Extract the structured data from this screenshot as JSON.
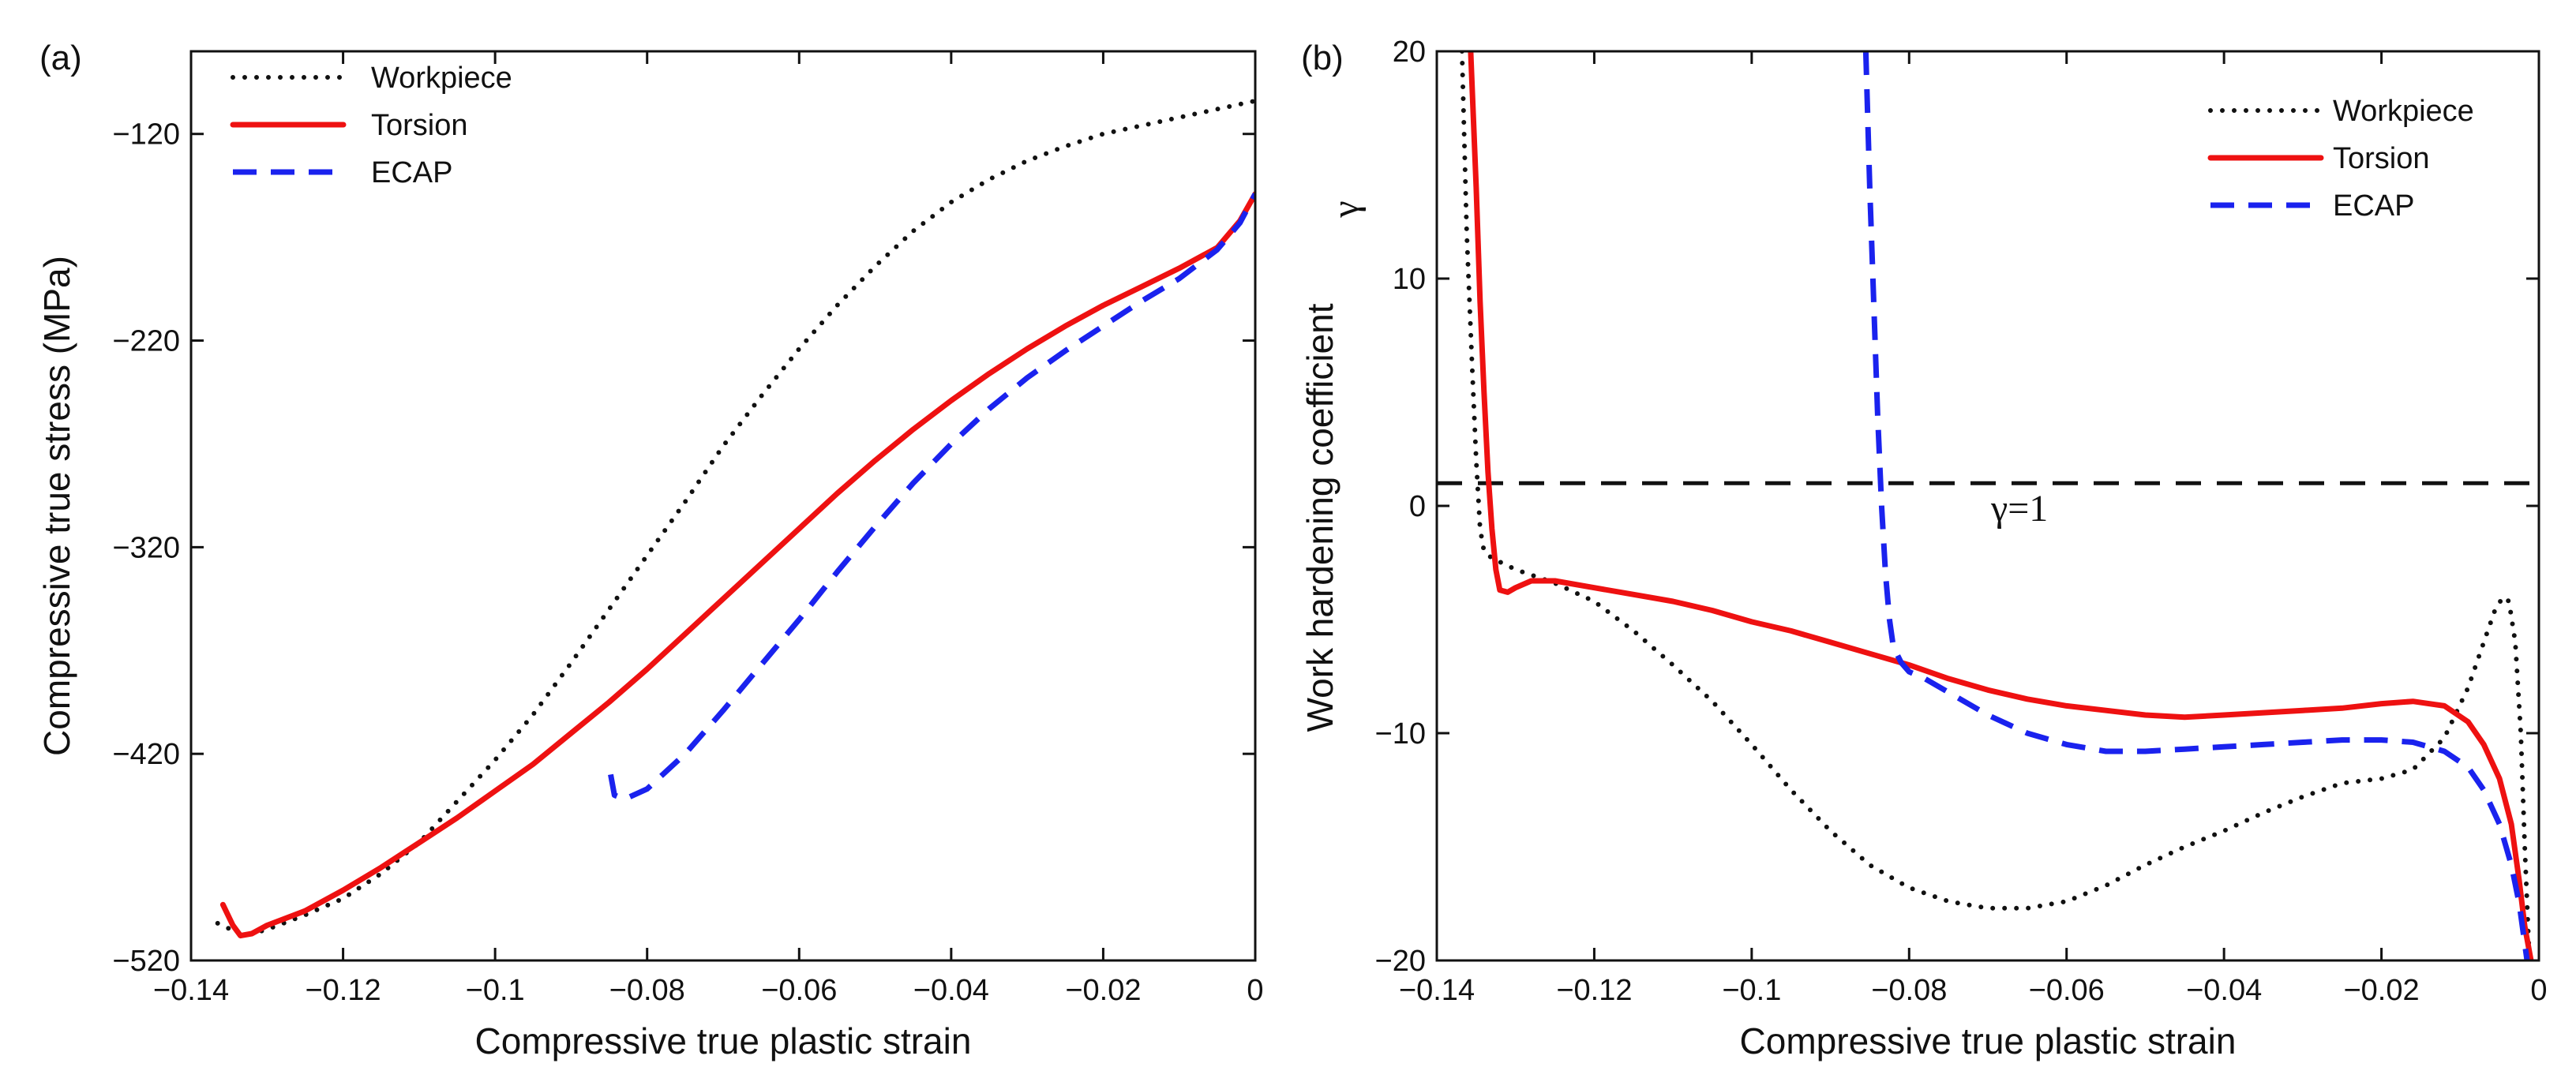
{
  "chart_data": [
    {
      "id": "a",
      "type": "line",
      "panel_label": "(a)",
      "xlabel": "Compressive true plastic strain",
      "ylabel": "Compressive true stress (MPa)",
      "xlim": [
        -0.14,
        0
      ],
      "ylim": [
        -520,
        -80
      ],
      "xticks": [
        -0.14,
        -0.12,
        -0.1,
        -0.08,
        -0.06,
        -0.04,
        -0.02,
        0
      ],
      "xtick_labels": [
        "−0.14",
        "−0.12",
        "−0.1",
        "−0.08",
        "−0.06",
        "−0.04",
        "−0.02",
        "0"
      ],
      "yticks": [
        -120,
        -220,
        -320,
        -420,
        -520
      ],
      "ytick_labels": [
        "−120",
        "−220",
        "−320",
        "−420",
        "−520"
      ],
      "legend": {
        "position": "top-left"
      },
      "series": [
        {
          "name": "Workpiece",
          "style": "dotted",
          "color": "#111111",
          "points": [
            [
              -0.1365,
              -502
            ],
            [
              -0.133,
              -508
            ],
            [
              -0.13,
              -505
            ],
            [
              -0.125,
              -498
            ],
            [
              -0.12,
              -490
            ],
            [
              -0.115,
              -478
            ],
            [
              -0.11,
              -463
            ],
            [
              -0.105,
              -443
            ],
            [
              -0.1,
              -423
            ],
            [
              -0.095,
              -401
            ],
            [
              -0.09,
              -376
            ],
            [
              -0.085,
              -350
            ],
            [
              -0.08,
              -324
            ],
            [
              -0.075,
              -298
            ],
            [
              -0.07,
              -271
            ],
            [
              -0.065,
              -247
            ],
            [
              -0.06,
              -224
            ],
            [
              -0.055,
              -203
            ],
            [
              -0.05,
              -184
            ],
            [
              -0.045,
              -167
            ],
            [
              -0.04,
              -153
            ],
            [
              -0.035,
              -142
            ],
            [
              -0.03,
              -133
            ],
            [
              -0.025,
              -126
            ],
            [
              -0.02,
              -120
            ],
            [
              -0.015,
              -116
            ],
            [
              -0.01,
              -112
            ],
            [
              -0.005,
              -108
            ],
            [
              0,
              -104
            ]
          ]
        },
        {
          "name": "Torsion",
          "style": "solid",
          "color": "#ee1111",
          "points": [
            [
              -0.1358,
              -493
            ],
            [
              -0.1345,
              -503
            ],
            [
              -0.1335,
              -508
            ],
            [
              -0.132,
              -507
            ],
            [
              -0.13,
              -503
            ],
            [
              -0.125,
              -496
            ],
            [
              -0.12,
              -486
            ],
            [
              -0.115,
              -475
            ],
            [
              -0.11,
              -463
            ],
            [
              -0.105,
              -451
            ],
            [
              -0.1,
              -438
            ],
            [
              -0.095,
              -425
            ],
            [
              -0.09,
              -410
            ],
            [
              -0.085,
              -395
            ],
            [
              -0.08,
              -379
            ],
            [
              -0.075,
              -362
            ],
            [
              -0.07,
              -345
            ],
            [
              -0.065,
              -328
            ],
            [
              -0.06,
              -311
            ],
            [
              -0.055,
              -294
            ],
            [
              -0.05,
              -278
            ],
            [
              -0.045,
              -263
            ],
            [
              -0.04,
              -249
            ],
            [
              -0.035,
              -236
            ],
            [
              -0.03,
              -224
            ],
            [
              -0.025,
              -213
            ],
            [
              -0.02,
              -203
            ],
            [
              -0.015,
              -194
            ],
            [
              -0.01,
              -185
            ],
            [
              -0.005,
              -175
            ],
            [
              -0.002,
              -162
            ],
            [
              0,
              -149
            ]
          ]
        },
        {
          "name": "ECAP",
          "style": "dashed",
          "color": "#1a22ee",
          "points": [
            [
              -0.0848,
              -430
            ],
            [
              -0.0843,
              -440
            ],
            [
              -0.083,
              -442
            ],
            [
              -0.08,
              -437
            ],
            [
              -0.075,
              -420
            ],
            [
              -0.07,
              -399
            ],
            [
              -0.065,
              -377
            ],
            [
              -0.06,
              -355
            ],
            [
              -0.055,
              -332
            ],
            [
              -0.05,
              -310
            ],
            [
              -0.045,
              -289
            ],
            [
              -0.04,
              -270
            ],
            [
              -0.035,
              -253
            ],
            [
              -0.03,
              -238
            ],
            [
              -0.025,
              -225
            ],
            [
              -0.02,
              -213
            ],
            [
              -0.015,
              -201
            ],
            [
              -0.01,
              -190
            ],
            [
              -0.005,
              -176
            ],
            [
              -0.002,
              -163
            ],
            [
              0,
              -149
            ]
          ]
        }
      ]
    },
    {
      "id": "b",
      "type": "line",
      "panel_label": "(b)",
      "xlabel": "Compressive true plastic strain",
      "ylabel": "Work hardening coefficient",
      "ylabel_symbol": "γ",
      "xlim": [
        -0.14,
        0
      ],
      "ylim": [
        -20,
        20
      ],
      "xticks": [
        -0.14,
        -0.12,
        -0.1,
        -0.08,
        -0.06,
        -0.04,
        -0.02,
        0
      ],
      "xtick_labels": [
        "−0.14",
        "−0.12",
        "−0.1",
        "−0.08",
        "−0.06",
        "−0.04",
        "−0.02",
        "0"
      ],
      "yticks": [
        20,
        10,
        0,
        -10,
        -20
      ],
      "ytick_labels": [
        "20",
        "10",
        "0",
        "−10",
        "−20"
      ],
      "legend": {
        "position": "top-right"
      },
      "reference_line": {
        "y": 1,
        "label": "γ=1",
        "style": "dashed",
        "color": "#111111"
      },
      "series": [
        {
          "name": "Workpiece",
          "style": "dotted",
          "color": "#111111",
          "points": [
            [
              -0.1368,
              20
            ],
            [
              -0.1362,
              12
            ],
            [
              -0.1355,
              6
            ],
            [
              -0.135,
              2
            ],
            [
              -0.1345,
              -1
            ],
            [
              -0.134,
              -2
            ],
            [
              -0.133,
              -2.3
            ],
            [
              -0.13,
              -2.8
            ],
            [
              -0.125,
              -3.4
            ],
            [
              -0.12,
              -4.2
            ],
            [
              -0.115,
              -5.5
            ],
            [
              -0.11,
              -7
            ],
            [
              -0.105,
              -8.6
            ],
            [
              -0.1,
              -10.5
            ],
            [
              -0.095,
              -12.5
            ],
            [
              -0.09,
              -14.3
            ],
            [
              -0.085,
              -15.8
            ],
            [
              -0.08,
              -16.8
            ],
            [
              -0.075,
              -17.4
            ],
            [
              -0.07,
              -17.7
            ],
            [
              -0.065,
              -17.7
            ],
            [
              -0.06,
              -17.4
            ],
            [
              -0.055,
              -16.7
            ],
            [
              -0.05,
              -15.8
            ],
            [
              -0.045,
              -15
            ],
            [
              -0.04,
              -14.3
            ],
            [
              -0.035,
              -13.5
            ],
            [
              -0.03,
              -12.8
            ],
            [
              -0.025,
              -12.2
            ],
            [
              -0.02,
              -12
            ],
            [
              -0.016,
              -11.6
            ],
            [
              -0.012,
              -10.2
            ],
            [
              -0.009,
              -8
            ],
            [
              -0.007,
              -6
            ],
            [
              -0.0055,
              -4.5
            ],
            [
              -0.0045,
              -4
            ],
            [
              -0.0038,
              -4.2
            ],
            [
              -0.003,
              -6
            ],
            [
              -0.0023,
              -10
            ],
            [
              -0.0018,
              -15
            ],
            [
              -0.0012,
              -20
            ]
          ]
        },
        {
          "name": "Torsion",
          "style": "solid",
          "color": "#ee1111",
          "points": [
            [
              -0.1357,
              20
            ],
            [
              -0.135,
              14
            ],
            [
              -0.1345,
              9
            ],
            [
              -0.134,
              5
            ],
            [
              -0.1335,
              1.5
            ],
            [
              -0.133,
              -1
            ],
            [
              -0.1325,
              -2.8
            ],
            [
              -0.132,
              -3.7
            ],
            [
              -0.131,
              -3.8
            ],
            [
              -0.13,
              -3.6
            ],
            [
              -0.128,
              -3.3
            ],
            [
              -0.125,
              -3.3
            ],
            [
              -0.12,
              -3.6
            ],
            [
              -0.115,
              -3.9
            ],
            [
              -0.11,
              -4.2
            ],
            [
              -0.105,
              -4.6
            ],
            [
              -0.1,
              -5.1
            ],
            [
              -0.095,
              -5.5
            ],
            [
              -0.09,
              -6
            ],
            [
              -0.085,
              -6.5
            ],
            [
              -0.08,
              -7
            ],
            [
              -0.075,
              -7.6
            ],
            [
              -0.07,
              -8.1
            ],
            [
              -0.065,
              -8.5
            ],
            [
              -0.06,
              -8.8
            ],
            [
              -0.055,
              -9
            ],
            [
              -0.05,
              -9.2
            ],
            [
              -0.045,
              -9.3
            ],
            [
              -0.04,
              -9.2
            ],
            [
              -0.035,
              -9.1
            ],
            [
              -0.03,
              -9
            ],
            [
              -0.025,
              -8.9
            ],
            [
              -0.02,
              -8.7
            ],
            [
              -0.016,
              -8.6
            ],
            [
              -0.012,
              -8.8
            ],
            [
              -0.009,
              -9.5
            ],
            [
              -0.007,
              -10.5
            ],
            [
              -0.005,
              -12
            ],
            [
              -0.0035,
              -14
            ],
            [
              -0.0025,
              -16.5
            ],
            [
              -0.0018,
              -18.5
            ],
            [
              -0.001,
              -20
            ]
          ]
        },
        {
          "name": "ECAP",
          "style": "dashed",
          "color": "#1a22ee",
          "points": [
            [
              -0.0855,
              20
            ],
            [
              -0.085,
              14
            ],
            [
              -0.0845,
              9
            ],
            [
              -0.084,
              4
            ],
            [
              -0.0835,
              0
            ],
            [
              -0.083,
              -3
            ],
            [
              -0.0825,
              -5
            ],
            [
              -0.082,
              -6.2
            ],
            [
              -0.081,
              -6.9
            ],
            [
              -0.08,
              -7.3
            ],
            [
              -0.078,
              -7.6
            ],
            [
              -0.075,
              -8.2
            ],
            [
              -0.07,
              -9.2
            ],
            [
              -0.065,
              -10
            ],
            [
              -0.06,
              -10.5
            ],
            [
              -0.055,
              -10.8
            ],
            [
              -0.05,
              -10.8
            ],
            [
              -0.045,
              -10.7
            ],
            [
              -0.04,
              -10.6
            ],
            [
              -0.035,
              -10.5
            ],
            [
              -0.03,
              -10.4
            ],
            [
              -0.025,
              -10.3
            ],
            [
              -0.02,
              -10.3
            ],
            [
              -0.016,
              -10.4
            ],
            [
              -0.012,
              -10.8
            ],
            [
              -0.009,
              -11.5
            ],
            [
              -0.007,
              -12.5
            ],
            [
              -0.005,
              -14
            ],
            [
              -0.0035,
              -15.8
            ],
            [
              -0.0025,
              -17.5
            ],
            [
              -0.0015,
              -20
            ]
          ]
        }
      ]
    }
  ]
}
